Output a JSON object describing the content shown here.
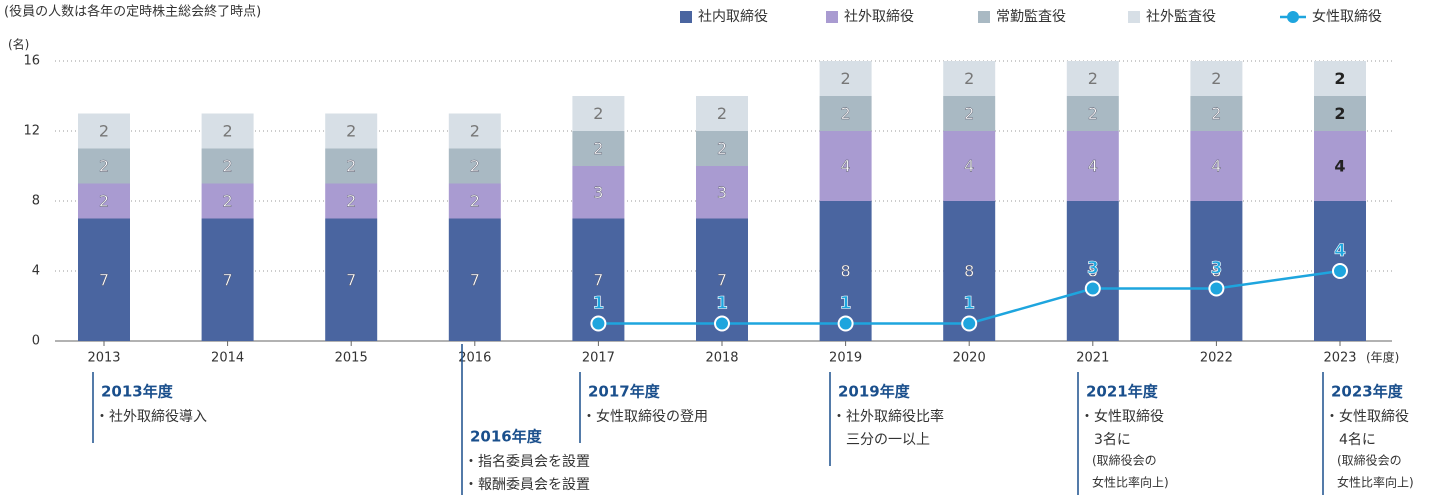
{
  "chart_data": {
    "type": "bar",
    "stacked": true,
    "subtitle": "(役員の人数は各年の定時株主総会終了時点)",
    "y_label": "(名)",
    "x_label": "(年度)",
    "categories": [
      "2013",
      "2014",
      "2015",
      "2016",
      "2017",
      "2018",
      "2019",
      "2020",
      "2021",
      "2022",
      "2023"
    ],
    "ylim": [
      0,
      16
    ],
    "yticks": [
      0,
      4,
      8,
      12,
      16
    ],
    "grid": true,
    "legend": "top-right",
    "series": [
      {
        "name": "社内取締役",
        "color": "#4a65a0",
        "values": [
          7,
          7,
          7,
          7,
          7,
          7,
          8,
          8,
          8,
          8,
          8
        ]
      },
      {
        "name": "社外取締役",
        "color": "#a99bd1",
        "values": [
          2,
          2,
          2,
          2,
          3,
          3,
          4,
          4,
          4,
          4,
          4
        ]
      },
      {
        "name": "常勤監査役",
        "color": "#a9b9c3",
        "values": [
          2,
          2,
          2,
          2,
          2,
          2,
          2,
          2,
          2,
          2,
          2
        ]
      },
      {
        "name": "社外監査役",
        "color": "#d7dfe6",
        "values": [
          2,
          2,
          2,
          2,
          2,
          2,
          2,
          2,
          2,
          2,
          2
        ]
      },
      {
        "name": "女性取締役",
        "color": "#1ea5de",
        "type": "line",
        "values": [
          null,
          null,
          null,
          null,
          1,
          1,
          1,
          1,
          3,
          3,
          4
        ]
      }
    ],
    "annotations": [
      {
        "title": "2013年度",
        "lines": [
          "・社外取締役導入"
        ]
      },
      {
        "title": "2016年度",
        "lines": [
          "・指名委員会を設置",
          "・報酬委員会を設置"
        ]
      },
      {
        "title": "2017年度",
        "lines": [
          "・女性取締役の登用"
        ]
      },
      {
        "title": "2019年度",
        "lines": [
          "・社外取締役比率",
          "　三分の一以上"
        ]
      },
      {
        "title": "2021年度",
        "lines": [
          "・女性取締役",
          "　3名に",
          "　(取締役会の",
          "　女性比率向上)"
        ]
      },
      {
        "title": "2023年度",
        "lines": [
          "・女性取締役",
          "　4名に",
          "　(取締役会の",
          "　女性比率向上)"
        ]
      }
    ]
  }
}
